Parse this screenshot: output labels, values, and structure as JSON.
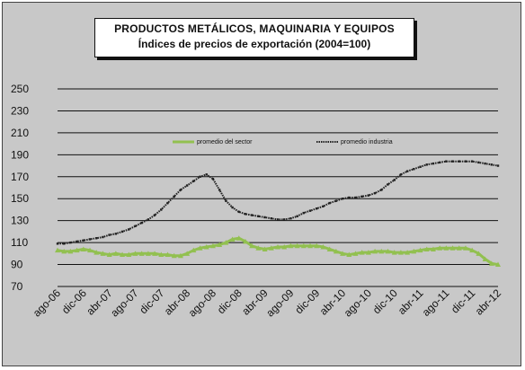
{
  "chart_data": {
    "type": "line",
    "title": "PRODUCTOS METÁLICOS, MAQUINARIA Y EQUIPOS",
    "subtitle": "Índices de precios de exportación (2004=100)",
    "ylim": [
      70,
      250
    ],
    "yticks": [
      "250",
      "230",
      "210",
      "190",
      "170",
      "150",
      "130",
      "110",
      "90",
      "70"
    ],
    "grid": true,
    "legend_position": "top",
    "xtick_labels": [
      "ago-06",
      "dic-06",
      "abr-07",
      "ago-07",
      "dic-07",
      "abr-08",
      "ago-08",
      "dic-08",
      "abr-09",
      "ago-09",
      "dic-09",
      "abr-10",
      "ago-10",
      "dic-10",
      "abr-11",
      "ago-11",
      "dic-11",
      "abr-12"
    ],
    "x": [
      "ago-06",
      "sep-06",
      "oct-06",
      "nov-06",
      "dic-06",
      "ene-07",
      "feb-07",
      "mar-07",
      "abr-07",
      "may-07",
      "jun-07",
      "jul-07",
      "ago-07",
      "sep-07",
      "oct-07",
      "nov-07",
      "dic-07",
      "ene-08",
      "feb-08",
      "mar-08",
      "abr-08",
      "may-08",
      "jun-08",
      "jul-08",
      "ago-08",
      "sep-08",
      "oct-08",
      "nov-08",
      "dic-08",
      "ene-09",
      "feb-09",
      "mar-09",
      "abr-09",
      "may-09",
      "jun-09",
      "jul-09",
      "ago-09",
      "sep-09",
      "oct-09",
      "nov-09",
      "dic-09",
      "ene-10",
      "feb-10",
      "mar-10",
      "abr-10",
      "may-10",
      "jun-10",
      "jul-10",
      "ago-10",
      "sep-10",
      "oct-10",
      "nov-10",
      "dic-10",
      "ene-11",
      "feb-11",
      "mar-11",
      "abr-11",
      "may-11",
      "jun-11",
      "jul-11",
      "ago-11",
      "sep-11",
      "oct-11",
      "nov-11",
      "dic-11",
      "ene-12",
      "feb-12",
      "mar-12",
      "abr-12"
    ],
    "series": [
      {
        "name": "promedio del sector",
        "color": "#92c050",
        "values": [
          103,
          102,
          102,
          103,
          104,
          103,
          101,
          100,
          99,
          100,
          99,
          99,
          100,
          100,
          100,
          100,
          99,
          99,
          98,
          98,
          100,
          103,
          105,
          106,
          107,
          108,
          110,
          113,
          114,
          111,
          107,
          105,
          104,
          105,
          106,
          106,
          107,
          107,
          107,
          107,
          107,
          106,
          104,
          102,
          100,
          99,
          100,
          101,
          101,
          102,
          102,
          102,
          101,
          101,
          101,
          102,
          103,
          104,
          104,
          105,
          105,
          105,
          105,
          105,
          103,
          100,
          95,
          91,
          90
        ]
      },
      {
        "name": "promedio industria",
        "color": "#222222",
        "values": [
          109,
          109,
          110,
          111,
          112,
          113,
          114,
          115,
          117,
          118,
          120,
          122,
          125,
          128,
          131,
          135,
          140,
          146,
          152,
          158,
          162,
          166,
          170,
          172,
          168,
          158,
          148,
          142,
          138,
          136,
          135,
          134,
          133,
          132,
          131,
          131,
          132,
          134,
          137,
          139,
          141,
          143,
          146,
          148,
          150,
          151,
          151,
          152,
          153,
          155,
          158,
          163,
          167,
          172,
          175,
          177,
          179,
          181,
          182,
          183,
          184,
          184,
          184,
          184,
          184,
          183,
          182,
          181,
          180
        ]
      }
    ]
  }
}
